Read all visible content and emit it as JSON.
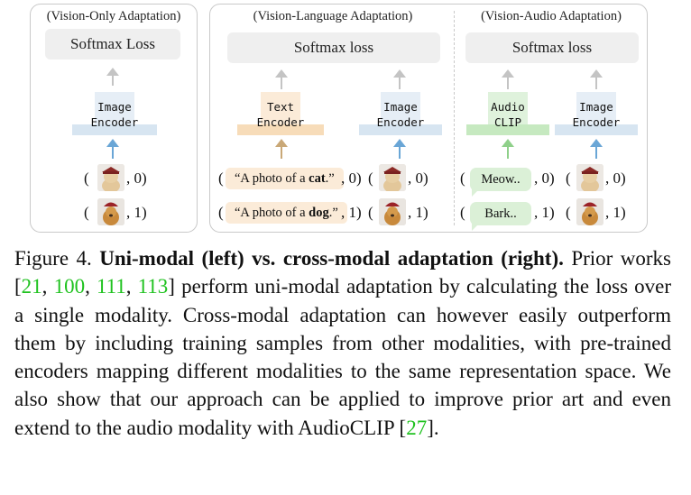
{
  "figure": {
    "left_panel": {
      "title": "(Vision-Only Adaptation)",
      "loss": "Softmax Loss",
      "encoder": [
        "Image",
        "Encoder"
      ],
      "samples": [
        {
          "open": "(",
          "image": "cat-with-hat-icon",
          "close": ", 0)"
        },
        {
          "open": "(",
          "image": "dog-with-hat-icon",
          "close": ", 1)"
        }
      ]
    },
    "vision_language": {
      "title": "(Vision-Language Adaptation)",
      "loss": "Softmax loss",
      "text_encoder": [
        "Text",
        "Encoder"
      ],
      "image_encoder": [
        "Image",
        "Encoder"
      ],
      "text_samples": [
        {
          "open": "(",
          "prefix": "“A photo of a ",
          "bold": "cat",
          "suffix": ".”",
          "close": ", 0)"
        },
        {
          "open": "(",
          "prefix": "“A photo of a ",
          "bold": "dog",
          "suffix": ".”",
          "close": ", 1)"
        }
      ],
      "image_samples": [
        {
          "open": "(",
          "close": ", 0)"
        },
        {
          "open": "(",
          "close": ", 1)"
        }
      ]
    },
    "vision_audio": {
      "title": "(Vision-Audio Adaptation)",
      "loss": "Softmax loss",
      "audio_encoder": [
        "Audio",
        "CLIP"
      ],
      "image_encoder": [
        "Image",
        "Encoder"
      ],
      "audio_samples": [
        {
          "open": "(",
          "label": "Meow..",
          "close": ", 0)"
        },
        {
          "open": "(",
          "label": "Bark..",
          "close": ", 1)"
        }
      ],
      "image_samples": [
        {
          "open": "(",
          "close": ", 0)"
        },
        {
          "open": "(",
          "close": ", 1)"
        }
      ]
    },
    "colors": {
      "arrow_gray": "#c4c4c4",
      "arrow_blue": "#6aa6d6",
      "arrow_orange": "#c9a877",
      "arrow_green": "#8fd08a",
      "citation_green": "#1fc21f"
    }
  },
  "caption": {
    "label": "Figure 4.",
    "bold": "Uni-modal (left) vs. cross-modal adaptation (right).",
    "text1": "Prior works [",
    "cite1": "21",
    "sep1": ", ",
    "cite2": "100",
    "sep2": ", ",
    "cite3": "111",
    "sep3": ", ",
    "cite4": "113",
    "text2": "] perform uni-modal adaptation by calculating the loss over a single modality. Cross-modal adaptation can however easily outperform them by including training samples from other modalities, with pre-trained encoders mapping different modalities to the same representation space. We also show that our approach can be applied to improve prior art and even extend to the audio modality with AudioCLIP [",
    "cite5": "27",
    "text3": "]."
  }
}
